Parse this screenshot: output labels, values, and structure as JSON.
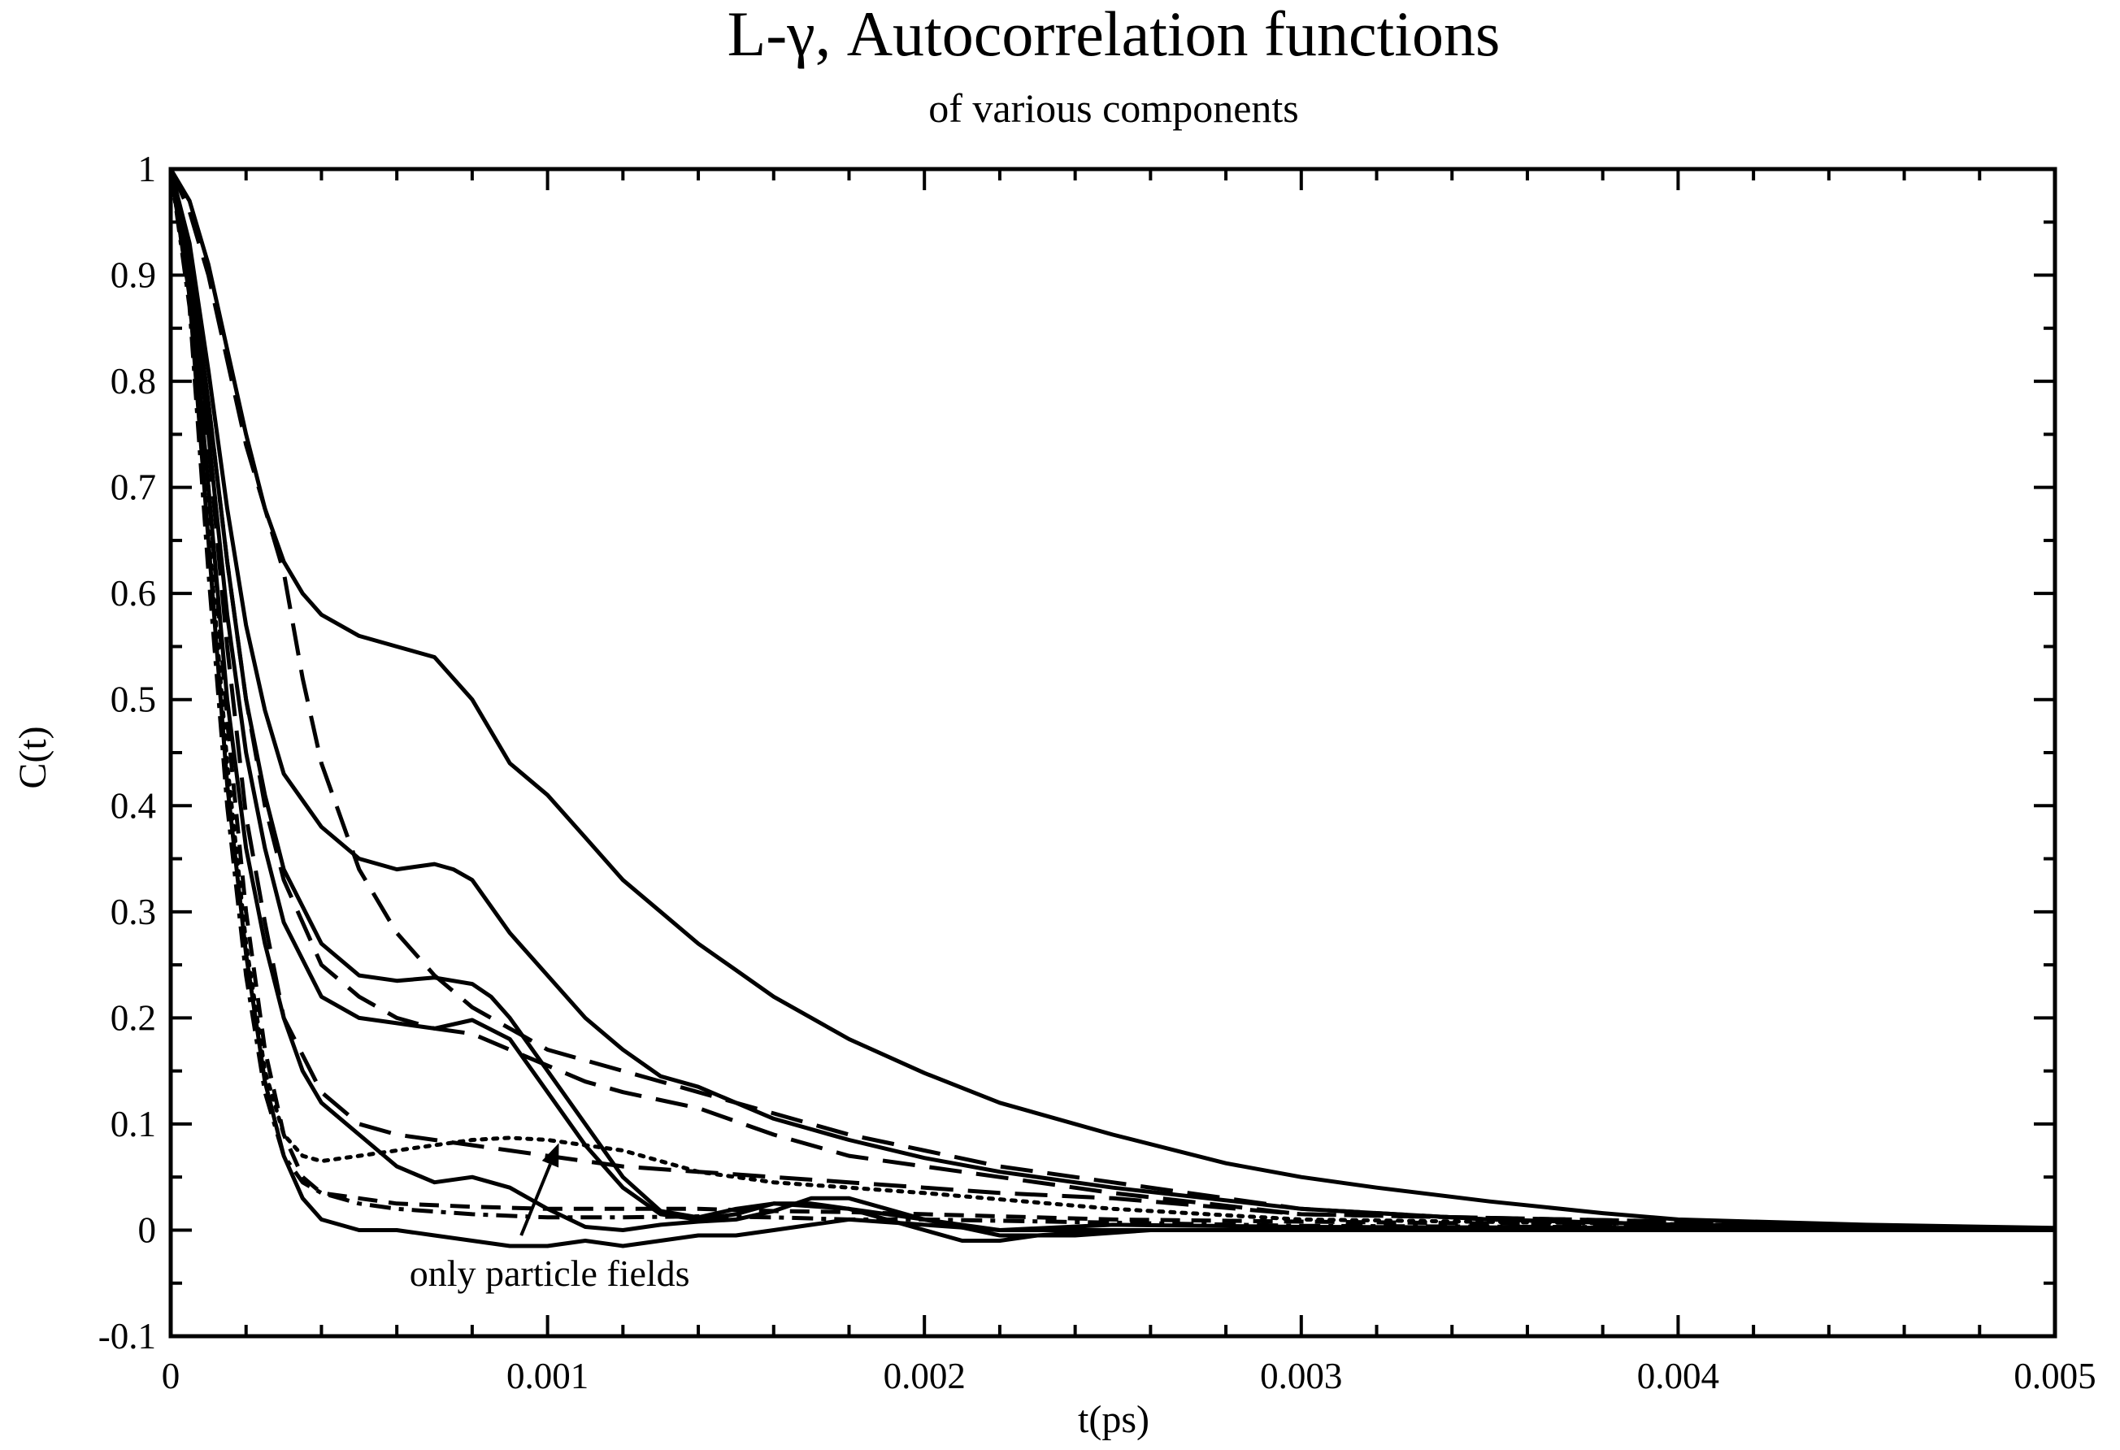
{
  "chart_data": {
    "type": "line",
    "title": "L-γ, Autocorrelation functions",
    "subtitle": "of various components",
    "xlabel": "t(ps)",
    "ylabel": "C(t)",
    "xlim": [
      0,
      0.005
    ],
    "ylim": [
      -0.1,
      1
    ],
    "x_ticks": [
      0,
      0.001,
      0.002,
      0.003,
      0.004,
      0.005
    ],
    "x_tick_labels": [
      "0",
      "0.001",
      "0.002",
      "0.003",
      "0.004",
      "0.005"
    ],
    "y_ticks": [
      -0.1,
      0,
      0.1,
      0.2,
      0.3,
      0.4,
      0.5,
      0.6,
      0.7,
      0.8,
      0.9,
      1
    ],
    "y_tick_labels": [
      "-0.1",
      "0",
      "0.1",
      "0.2",
      "0.3",
      "0.4",
      "0.5",
      "0.6",
      "0.7",
      "0.8",
      "0.9",
      "1"
    ],
    "grid": false,
    "line_color": "#000000",
    "annotation": {
      "text": "only particle fields",
      "arrow_from": [
        0.00093,
        -0.005
      ],
      "arrow_to": [
        0.00103,
        0.082
      ]
    },
    "series": [
      {
        "name": "solid-1",
        "dash": "solid",
        "x": [
          0,
          5e-05,
          0.0001,
          0.00015,
          0.0002,
          0.00025,
          0.0003,
          0.00035,
          0.0004,
          0.0005,
          0.0006,
          0.0007,
          0.0008,
          0.0009,
          0.001,
          0.0011,
          0.0012,
          0.0013,
          0.0014,
          0.0015,
          0.0016,
          0.0018,
          0.002,
          0.0022,
          0.0025,
          0.0028,
          0.003,
          0.0032,
          0.0035,
          0.0038,
          0.004,
          0.0045,
          0.005
        ],
        "y": [
          1,
          0.97,
          0.91,
          0.83,
          0.75,
          0.68,
          0.63,
          0.6,
          0.58,
          0.56,
          0.55,
          0.54,
          0.5,
          0.44,
          0.41,
          0.37,
          0.33,
          0.3,
          0.27,
          0.245,
          0.22,
          0.18,
          0.148,
          0.12,
          0.09,
          0.063,
          0.05,
          0.04,
          0.027,
          0.016,
          0.01,
          0.005,
          0.002
        ]
      },
      {
        "name": "solid-2",
        "dash": "solid",
        "x": [
          0,
          5e-05,
          0.0001,
          0.00015,
          0.0002,
          0.00025,
          0.0003,
          0.0004,
          0.0005,
          0.0006,
          0.0007,
          0.00075,
          0.0008,
          0.0009,
          0.001,
          0.0011,
          0.0012,
          0.0013,
          0.0014,
          0.0015,
          0.0016,
          0.0018,
          0.002,
          0.0022,
          0.0025,
          0.003,
          0.0035,
          0.004,
          0.005
        ],
        "y": [
          1,
          0.93,
          0.81,
          0.68,
          0.57,
          0.49,
          0.43,
          0.38,
          0.35,
          0.34,
          0.345,
          0.34,
          0.33,
          0.28,
          0.24,
          0.2,
          0.17,
          0.145,
          0.135,
          0.12,
          0.105,
          0.085,
          0.068,
          0.055,
          0.04,
          0.02,
          0.01,
          0.005,
          0.001
        ]
      },
      {
        "name": "solid-3",
        "dash": "solid",
        "x": [
          0,
          5e-05,
          0.0001,
          0.00015,
          0.0002,
          0.00025,
          0.0003,
          0.0004,
          0.0005,
          0.0006,
          0.0007,
          0.0008,
          0.00085,
          0.0009,
          0.001,
          0.0011,
          0.0012,
          0.0013,
          0.0014,
          0.0015,
          0.0016,
          0.0018,
          0.002,
          0.0022,
          0.0025,
          0.003,
          0.005
        ],
        "y": [
          1,
          0.92,
          0.78,
          0.63,
          0.5,
          0.41,
          0.34,
          0.27,
          0.24,
          0.235,
          0.238,
          0.232,
          0.22,
          0.2,
          0.15,
          0.1,
          0.05,
          0.018,
          0.012,
          0.02,
          0.025,
          0.02,
          0.01,
          0.0,
          0.005,
          0.003,
          0.001
        ]
      },
      {
        "name": "solid-4",
        "dash": "solid",
        "x": [
          0,
          5e-05,
          0.0001,
          0.00015,
          0.0002,
          0.00025,
          0.0003,
          0.0004,
          0.0005,
          0.0006,
          0.0007,
          0.0008,
          0.0009,
          0.001,
          0.0011,
          0.0012,
          0.0013,
          0.0014,
          0.0015,
          0.0016,
          0.0017,
          0.0018,
          0.002,
          0.0021,
          0.0022,
          0.0023,
          0.0025,
          0.003,
          0.005
        ],
        "y": [
          1,
          0.91,
          0.75,
          0.58,
          0.45,
          0.36,
          0.29,
          0.22,
          0.2,
          0.195,
          0.19,
          0.198,
          0.18,
          0.13,
          0.08,
          0.04,
          0.015,
          0.01,
          0.015,
          0.025,
          0.025,
          0.02,
          0.0,
          -0.01,
          -0.01,
          -0.005,
          0.0,
          0.0,
          0.0
        ]
      },
      {
        "name": "solid-5",
        "dash": "solid",
        "x": [
          0,
          5e-05,
          0.0001,
          0.00015,
          0.0002,
          0.00025,
          0.0003,
          0.00035,
          0.0004,
          0.0005,
          0.0006,
          0.0007,
          0.0008,
          0.0009,
          0.001,
          0.0011,
          0.0012,
          0.0013,
          0.0014,
          0.0015,
          0.0016,
          0.0017,
          0.0018,
          0.0019,
          0.002,
          0.0022,
          0.0024,
          0.0026,
          0.003,
          0.005
        ],
        "y": [
          1,
          0.9,
          0.7,
          0.5,
          0.36,
          0.27,
          0.2,
          0.15,
          0.12,
          0.09,
          0.06,
          0.045,
          0.05,
          0.04,
          0.02,
          0.003,
          0.0,
          0.005,
          0.008,
          0.01,
          0.018,
          0.03,
          0.03,
          0.02,
          0.01,
          -0.005,
          -0.005,
          0.0,
          0.0,
          0.0
        ]
      },
      {
        "name": "solid-6",
        "dash": "solid",
        "x": [
          0,
          5e-05,
          0.0001,
          0.00015,
          0.0002,
          0.00025,
          0.0003,
          0.00035,
          0.0004,
          0.0005,
          0.0006,
          0.0007,
          0.0008,
          0.0009,
          0.001,
          0.0011,
          0.0012,
          0.0013,
          0.0014,
          0.0015,
          0.0016,
          0.0017,
          0.0018,
          0.002,
          0.0022,
          0.0025,
          0.003,
          0.005
        ],
        "y": [
          1,
          0.88,
          0.65,
          0.42,
          0.26,
          0.14,
          0.07,
          0.03,
          0.01,
          0.0,
          0.0,
          -0.005,
          -0.01,
          -0.015,
          -0.015,
          -0.01,
          -0.015,
          -0.01,
          -0.005,
          -0.005,
          0.0,
          0.005,
          0.01,
          0.005,
          0.0,
          0.0,
          0.0,
          0.0
        ]
      },
      {
        "name": "dashed-1",
        "dash": "long",
        "x": [
          0,
          5e-05,
          0.0001,
          0.00015,
          0.0002,
          0.00025,
          0.0003,
          0.00035,
          0.0004,
          0.0005,
          0.0006,
          0.0007,
          0.0008,
          0.0009,
          0.001,
          0.0011,
          0.0012,
          0.0014,
          0.0016,
          0.0018,
          0.002,
          0.0022,
          0.0025,
          0.003,
          0.0035,
          0.004,
          0.005
        ],
        "y": [
          1,
          0.96,
          0.9,
          0.82,
          0.74,
          0.68,
          0.62,
          0.52,
          0.44,
          0.34,
          0.28,
          0.24,
          0.21,
          0.19,
          0.17,
          0.16,
          0.15,
          0.13,
          0.11,
          0.09,
          0.075,
          0.06,
          0.045,
          0.02,
          0.01,
          0.005,
          0.001
        ]
      },
      {
        "name": "dashed-2",
        "dash": "long",
        "x": [
          0,
          5e-05,
          0.0001,
          0.00015,
          0.0002,
          0.00025,
          0.0003,
          0.0004,
          0.0005,
          0.0006,
          0.0007,
          0.0008,
          0.0009,
          0.001,
          0.0011,
          0.0012,
          0.0014,
          0.0016,
          0.0018,
          0.002,
          0.0022,
          0.0025,
          0.003,
          0.005
        ],
        "y": [
          1,
          0.91,
          0.78,
          0.63,
          0.5,
          0.4,
          0.33,
          0.25,
          0.22,
          0.2,
          0.19,
          0.185,
          0.17,
          0.155,
          0.14,
          0.13,
          0.115,
          0.09,
          0.07,
          0.06,
          0.05,
          0.035,
          0.015,
          0.001
        ]
      },
      {
        "name": "dashed-3",
        "dash": "long",
        "x": [
          0,
          5e-05,
          0.0001,
          0.00015,
          0.0002,
          0.00025,
          0.0003,
          0.0004,
          0.0005,
          0.0006,
          0.0007,
          0.0008,
          0.0009,
          0.001,
          0.0012,
          0.0014,
          0.0016,
          0.0018,
          0.002,
          0.0022,
          0.0025,
          0.003,
          0.005
        ],
        "y": [
          1,
          0.9,
          0.74,
          0.55,
          0.39,
          0.29,
          0.2,
          0.13,
          0.1,
          0.09,
          0.085,
          0.08,
          0.075,
          0.07,
          0.06,
          0.055,
          0.05,
          0.045,
          0.04,
          0.035,
          0.03,
          0.015,
          0.001
        ]
      },
      {
        "name": "dashed-4",
        "dash": "medium",
        "x": [
          0,
          5e-05,
          0.0001,
          0.00015,
          0.0002,
          0.00025,
          0.0003,
          0.00035,
          0.0004,
          0.0005,
          0.0006,
          0.0008,
          0.001,
          0.0012,
          0.0014,
          0.0016,
          0.0018,
          0.002,
          0.0025,
          0.003,
          0.005
        ],
        "y": [
          1,
          0.89,
          0.7,
          0.48,
          0.3,
          0.17,
          0.09,
          0.05,
          0.035,
          0.03,
          0.025,
          0.022,
          0.02,
          0.02,
          0.02,
          0.018,
          0.017,
          0.015,
          0.01,
          0.008,
          0.001
        ]
      },
      {
        "name": "dotted-1",
        "dash": "dotted",
        "x": [
          0,
          5e-05,
          0.0001,
          0.00015,
          0.0002,
          0.00025,
          0.0003,
          0.00035,
          0.0004,
          0.0005,
          0.0006,
          0.0007,
          0.0008,
          0.0009,
          0.001,
          0.0011,
          0.0012,
          0.0013,
          0.0014,
          0.0016,
          0.0018,
          0.002,
          0.0025,
          0.003,
          0.005
        ],
        "y": [
          1,
          0.88,
          0.66,
          0.44,
          0.27,
          0.15,
          0.09,
          0.07,
          0.065,
          0.07,
          0.075,
          0.08,
          0.085,
          0.087,
          0.085,
          0.08,
          0.075,
          0.065,
          0.055,
          0.045,
          0.04,
          0.035,
          0.02,
          0.01,
          0.001
        ]
      },
      {
        "name": "dashdot-1",
        "dash": "dashdot",
        "x": [
          0,
          5e-05,
          0.0001,
          0.00015,
          0.0002,
          0.00025,
          0.0003,
          0.00035,
          0.0004,
          0.0005,
          0.0006,
          0.0008,
          0.001,
          0.0012,
          0.0014,
          0.0016,
          0.0018,
          0.002,
          0.0025,
          0.003,
          0.005
        ],
        "y": [
          1,
          0.87,
          0.62,
          0.4,
          0.24,
          0.13,
          0.07,
          0.045,
          0.035,
          0.025,
          0.02,
          0.015,
          0.012,
          0.012,
          0.013,
          0.012,
          0.01,
          0.01,
          0.007,
          0.004,
          0.001
        ]
      }
    ]
  }
}
